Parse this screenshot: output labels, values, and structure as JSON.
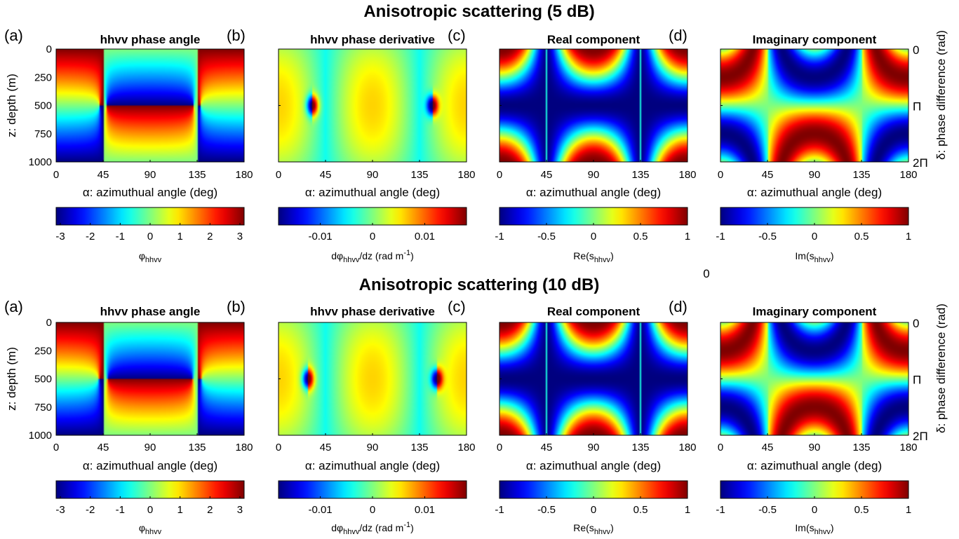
{
  "figure": {
    "stray_label": "0"
  },
  "colormap": {
    "name": "jet",
    "stops": [
      "#00008f",
      "#0000ff",
      "#00ffff",
      "#ffff00",
      "#ff0000",
      "#800000"
    ]
  },
  "chart_data": [
    {
      "title": "Anisotropic scattering (5 dB)",
      "anisotropy_db": 5,
      "panels": [
        {
          "letter": "(a)",
          "title": "hhvv phase angle",
          "type": "heatmap",
          "field": "phase",
          "xlabel": "α: azimuthual angle (deg)",
          "xlim": [
            0,
            180
          ],
          "xticks": [
            0,
            45,
            90,
            135,
            180
          ],
          "ylabel": "z: depth (m)",
          "ylim": [
            0,
            1000
          ],
          "yticks": [
            0,
            250,
            500,
            750,
            1000
          ],
          "colorbar": {
            "label": "φ",
            "label_sub": "hhvv",
            "label_tail": "",
            "sup": "",
            "sup_tail": "",
            "range": [
              -3.1416,
              3.1416
            ],
            "ticks": [
              -3,
              -2,
              -1,
              0,
              1,
              2,
              3
            ],
            "tick_labels": [
              "-3",
              "-2",
              "-1",
              "0",
              "1",
              "2",
              "3"
            ]
          }
        },
        {
          "letter": "(b)",
          "title": "hhvv phase derivative",
          "type": "heatmap",
          "field": "derivative",
          "xlabel": "α: azimuthual angle (deg)",
          "xlim": [
            0,
            180
          ],
          "xticks": [
            0,
            45,
            90,
            135,
            180
          ],
          "colorbar": {
            "label": "dφ",
            "label_sub": "hhvv",
            "label_tail": "/dz (rad m",
            "sup": "-1",
            "sup_tail": ")",
            "range": [
              -0.018,
              0.018
            ],
            "ticks": [
              -0.01,
              0,
              0.01
            ],
            "tick_labels": [
              "-0.01",
              "0",
              "0.01"
            ]
          }
        },
        {
          "letter": "(c)",
          "title": "Real component",
          "type": "heatmap",
          "field": "real",
          "xlabel": "α: azimuthual angle (deg)",
          "xlim": [
            0,
            180
          ],
          "xticks": [
            0,
            45,
            90,
            135,
            180
          ],
          "colorbar": {
            "label": "Re(s",
            "label_sub": "hhvv",
            "label_tail": ")",
            "sup": "",
            "sup_tail": "",
            "range": [
              -1,
              1
            ],
            "ticks": [
              -1,
              -0.5,
              0,
              0.5,
              1
            ],
            "tick_labels": [
              "-1",
              "-0.5",
              "0",
              "0.5",
              "1"
            ]
          }
        },
        {
          "letter": "(d)",
          "title": "Imaginary component",
          "type": "heatmap",
          "field": "imag",
          "xlabel": "α: azimuthual angle (deg)",
          "xlim": [
            0,
            180
          ],
          "xticks": [
            0,
            45,
            90,
            135,
            180
          ],
          "ylabel_right": "δ: phase difference (rad)",
          "yticks_right": [
            "0",
            "Π",
            "2Π"
          ],
          "colorbar": {
            "label": "Im(s",
            "label_sub": "hhvv",
            "label_tail": ")",
            "sup": "",
            "sup_tail": "",
            "range": [
              -1,
              1
            ],
            "ticks": [
              -1,
              -0.5,
              0,
              0.5,
              1
            ],
            "tick_labels": [
              "-1",
              "-0.5",
              "0",
              "0.5",
              "1"
            ]
          }
        }
      ]
    },
    {
      "title": "Anisotropic scattering (10 dB)",
      "anisotropy_db": 10,
      "panels": [
        {
          "letter": "(a)",
          "title": "hhvv phase angle",
          "type": "heatmap",
          "field": "phase",
          "xlabel": "α: azimuthual angle (deg)",
          "xlim": [
            0,
            180
          ],
          "xticks": [
            0,
            45,
            90,
            135,
            180
          ],
          "ylabel": "z: depth (m)",
          "ylim": [
            0,
            1000
          ],
          "yticks": [
            0,
            250,
            500,
            750,
            1000
          ],
          "colorbar": {
            "label": "φ",
            "label_sub": "hhvv",
            "label_tail": "",
            "sup": "",
            "sup_tail": "",
            "range": [
              -3.1416,
              3.1416
            ],
            "ticks": [
              -3,
              -2,
              -1,
              0,
              1,
              2,
              3
            ],
            "tick_labels": [
              "-3",
              "-2",
              "-1",
              "0",
              "1",
              "2",
              "3"
            ]
          }
        },
        {
          "letter": "(b)",
          "title": "hhvv phase derivative",
          "type": "heatmap",
          "field": "derivative",
          "xlabel": "α: azimuthual angle (deg)",
          "xlim": [
            0,
            180
          ],
          "xticks": [
            0,
            45,
            90,
            135,
            180
          ],
          "colorbar": {
            "label": "dφ",
            "label_sub": "hhvv",
            "label_tail": "/dz (rad m",
            "sup": "-1",
            "sup_tail": ")",
            "range": [
              -0.018,
              0.018
            ],
            "ticks": [
              -0.01,
              0,
              0.01
            ],
            "tick_labels": [
              "-0.01",
              "0",
              "0.01"
            ]
          }
        },
        {
          "letter": "(c)",
          "title": "Real component",
          "type": "heatmap",
          "field": "real",
          "xlabel": "α: azimuthual angle (deg)",
          "xlim": [
            0,
            180
          ],
          "xticks": [
            0,
            45,
            90,
            135,
            180
          ],
          "colorbar": {
            "label": "Re(s",
            "label_sub": "hhvv",
            "label_tail": ")",
            "sup": "",
            "sup_tail": "",
            "range": [
              -1,
              1
            ],
            "ticks": [
              -1,
              -0.5,
              0,
              0.5,
              1
            ],
            "tick_labels": [
              "-1",
              "-0.5",
              "0",
              "0.5",
              "1"
            ]
          }
        },
        {
          "letter": "(d)",
          "title": "Imaginary component",
          "type": "heatmap",
          "field": "imag",
          "xlabel": "α: azimuthual angle (deg)",
          "xlim": [
            0,
            180
          ],
          "xticks": [
            0,
            45,
            90,
            135,
            180
          ],
          "ylabel_right": "δ: phase difference (rad)",
          "yticks_right": [
            "0",
            "Π",
            "2Π"
          ],
          "colorbar": {
            "label": "Im(s",
            "label_sub": "hhvv",
            "label_tail": ")",
            "sup": "",
            "sup_tail": "",
            "range": [
              -1,
              1
            ],
            "ticks": [
              -1,
              -0.5,
              0,
              0.5,
              1
            ],
            "tick_labels": [
              "-1",
              "-0.5",
              "0",
              "0.5",
              "1"
            ]
          }
        }
      ]
    }
  ]
}
